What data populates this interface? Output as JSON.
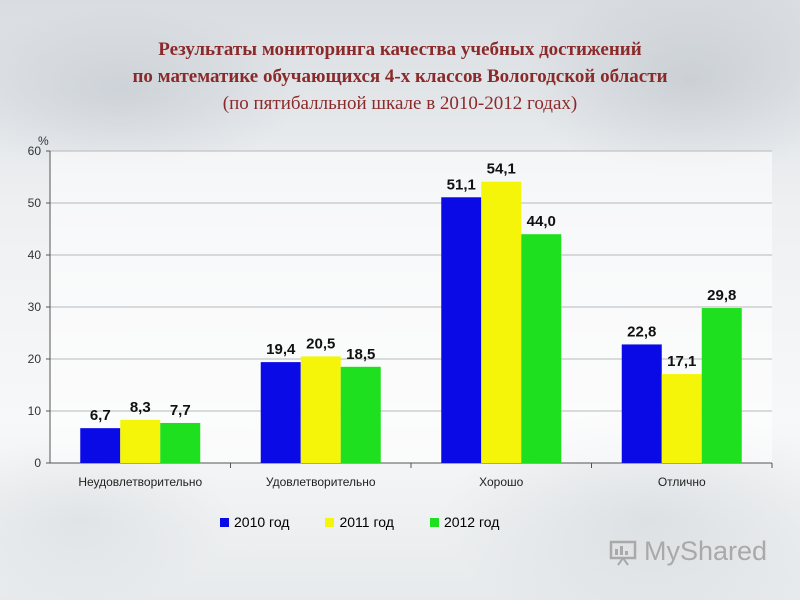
{
  "title": {
    "line1": "Результаты мониторинга качества учебных достижений",
    "line2": "по математике обучающихся 4-х классов Вологодской области",
    "line3": "(по пятибалльной шкале в 2010-2012 годах)"
  },
  "chart_data": {
    "type": "bar",
    "ylabel": "%",
    "ylim": [
      0,
      60
    ],
    "yticks": [
      0,
      10,
      20,
      30,
      40,
      50,
      60
    ],
    "grid": true,
    "legend_position": "bottom",
    "categories": [
      "Неудовлетворительно",
      "Удовлетворительно",
      "Хорошо",
      "Отлично"
    ],
    "series": [
      {
        "name": "2010 год",
        "color": "#0a0ae6",
        "values": [
          6.7,
          19.4,
          51.1,
          22.8
        ],
        "labels": [
          "6,7",
          "19,4",
          "51,1",
          "22,8"
        ]
      },
      {
        "name": "2011 год",
        "color": "#f5f50a",
        "values": [
          8.3,
          20.5,
          54.1,
          17.1
        ],
        "labels": [
          "8,3",
          "20,5",
          "54,1",
          "17,1"
        ]
      },
      {
        "name": "2012 год",
        "color": "#1fe01f",
        "values": [
          7.7,
          18.5,
          44.0,
          29.8
        ],
        "labels": [
          "7,7",
          "18,5",
          "44,0",
          "29,8"
        ]
      }
    ]
  },
  "watermark": {
    "text": "MyShared",
    "icon": "presentation-board-icon"
  }
}
